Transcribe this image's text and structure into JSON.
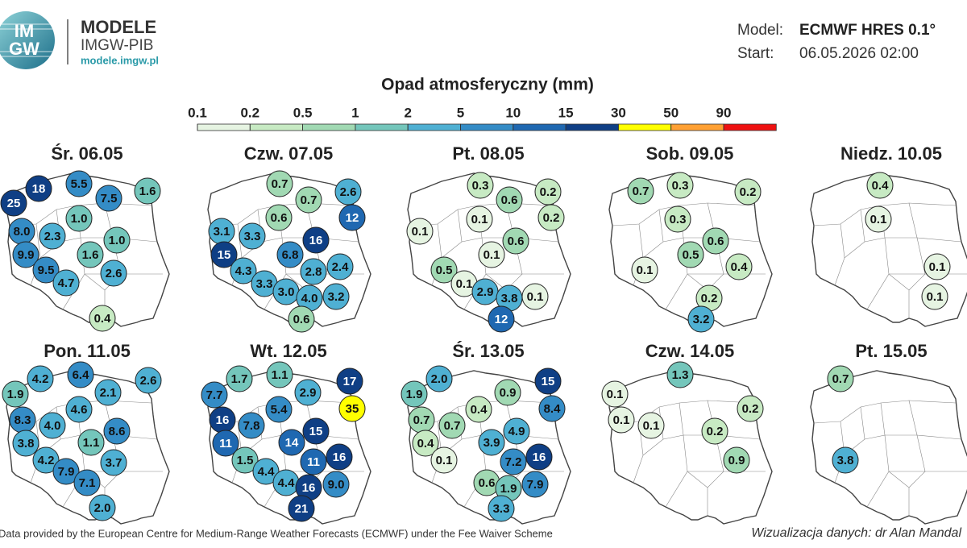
{
  "header": {
    "logo_top": "IM",
    "logo_bottom": "GW",
    "name": "MODELE",
    "org": "IMGW-PIB",
    "url": "modele.imgw.pl",
    "model_label": "Model:",
    "model_value": "ECMWF HRES 0.1°",
    "start_label": "Start:",
    "start_value": "06.05.2026 02:00"
  },
  "legend": {
    "title": "Opad atmosferyczny (mm)",
    "ticks": [
      0.1,
      0.2,
      0.5,
      1,
      2,
      5,
      10,
      15,
      30,
      50,
      90
    ],
    "colors": [
      "#e6f4e2",
      "#c7eac3",
      "#a1d9b3",
      "#74c6bb",
      "#4fb0d3",
      "#348cc6",
      "#1f68b1",
      "#0f3f85",
      "#ffff00",
      "#ffa033",
      "#ee1111"
    ]
  },
  "maps": [
    {
      "title": "Śr. 06.05",
      "values": [
        "25",
        "18",
        "5.5",
        "7.5",
        "1.6",
        "8.0",
        "1.0",
        "2.3",
        "1.0",
        "9.9",
        "1.6",
        "9.5",
        "2.6",
        "4.7",
        "0.4"
      ]
    },
    {
      "title": "Czw. 07.05",
      "values": [
        "0.7",
        "2.6",
        "0.7",
        "12",
        "0.6",
        "3.1",
        "3.3",
        "16",
        "15",
        "6.8",
        "2.4",
        "4.3",
        "2.8",
        "3.3",
        "3.0",
        "4.0",
        "3.2",
        "0.6"
      ]
    },
    {
      "title": "Pt. 08.05",
      "values": [
        "0.3",
        "0.2",
        "0.6",
        "0.1",
        "0.2",
        "0.1",
        "0.6",
        "0.1",
        "0.5",
        "0.1",
        "2.9",
        "3.8",
        "0.1",
        "12"
      ]
    },
    {
      "title": "Sob. 09.05",
      "values": [
        "0.7",
        "0.3",
        "0.2",
        "0.3",
        "0.6",
        "0.5",
        "0.4",
        "0.1",
        "0.2",
        "3.2"
      ]
    },
    {
      "title": "Niedz. 10.05",
      "values": [
        "0.4",
        "0.1",
        "0.1",
        "0.1"
      ]
    },
    {
      "title": "Pon. 11.05",
      "values": [
        "4.2",
        "6.4",
        "2.6",
        "1.9",
        "2.1",
        "4.6",
        "8.3",
        "4.0",
        "8.6",
        "3.8",
        "1.1",
        "4.2",
        "3.7",
        "7.9",
        "7.1",
        "2.0"
      ]
    },
    {
      "title": "Wt. 12.05",
      "values": [
        "1.7",
        "1.1",
        "17",
        "2.9",
        "35",
        "7.7",
        "5.4",
        "16",
        "7.8",
        "15",
        "11",
        "14",
        "16",
        "1.5",
        "11",
        "4.4",
        "4.4",
        "16",
        "9.0",
        "21"
      ]
    },
    {
      "title": "Śr. 13.05",
      "values": [
        "2.0",
        "15",
        "0.9",
        "1.9",
        "8.4",
        "0.4",
        "0.7",
        "0.7",
        "4.9",
        "0.4",
        "3.9",
        "7.2",
        "16",
        "0.1",
        "0.6",
        "1.9",
        "7.9",
        "3.3"
      ]
    },
    {
      "title": "Czw. 14.05",
      "values": [
        "1.3",
        "0.1",
        "0.2",
        "0.1",
        "0.1",
        "0.2",
        "0.9"
      ]
    },
    {
      "title": "Pt. 15.05",
      "values": [
        "0.7",
        "3.8"
      ]
    }
  ],
  "footer": {
    "source": "Data provided by the European Centre for Medium-Range Weather Forecasts (ECMWF) under the Fee Waiver Scheme",
    "credit": "Wizualizacja danych: dr Alan Mandal"
  }
}
